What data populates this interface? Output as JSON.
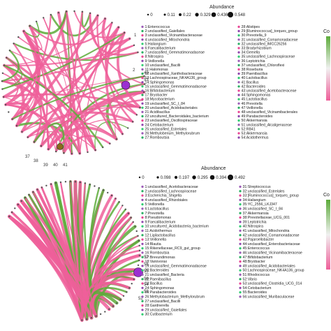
{
  "chart_data": [
    {
      "type": "chord",
      "legend_title": "Abundance",
      "size_legend": [
        "0",
        "0.11",
        "0.22",
        "0.329",
        "0.436",
        "0.548"
      ],
      "color_legend_title": "Co",
      "edge_colors": {
        "positive": "#ef5f9a",
        "negative": "#5dab3a"
      },
      "highlight_nodes": [
        {
          "id": "2",
          "color": "#9b2fd1"
        },
        {
          "id": "40",
          "color": "#8a6a1a"
        }
      ],
      "node_labels": [
        "1",
        "2",
        "49",
        "53",
        "37",
        "38",
        "39",
        "40",
        "41"
      ],
      "taxa": [
        "1:Enterococcus",
        "2:unclassified_Gaiellales",
        "3:unclassified_Vicinamibacteraceae",
        "4:unclassified_Mitochondria",
        "5:Haliangium",
        "6:Faecalibacterium",
        "7:unclassified_Gemmatimonadaceae",
        "8:Nitrospira",
        "9:Veillonella",
        "10:unclassified_Bacilli",
        "11:Halomonas",
        "12:unclassified_Xanthobacteraceae",
        "13:Lachnospiraceae_NK4A136_group",
        "14:Sphingomonas",
        "15:unclassified_Gemmatimonadaceae",
        "16:Bifidobacterium",
        "17:Bryobacter",
        "18:Mycobacterium",
        "19:unclassified_SC_I_84",
        "20:unclassified_Acidobacteriales",
        "21:Acidibacillus",
        "22:uncultured_Bacteroidales_bacterium",
        "23:unclassified_Oscillospiraceae",
        "24:Cetobacterium",
        "25:unclassified_Estrelales",
        "26:Methyloberium_Methylorubrum",
        "27:Romboutsia",
        "28:Alistipes",
        "29:[Ruminococcus]_torques_group",
        "30:Prevotella_9",
        "31:unclassified_Comamonadaceae",
        "32:unclassified_IMCC26256",
        "33:Bradyrhizobium",
        "34:Gemella",
        "35:unclassified_Lachnospiraceae",
        "36:Leptotrichia",
        "37:unclassified_Chloroflexi",
        "38:Roseburia",
        "39:Paenibacillus",
        "40:Lactobacillus",
        "41:Bacillus",
        "42:Bacteroides",
        "43:unclassified_Acetobacteraceae",
        "44:Sphingomonas",
        "45:Lactobacillus",
        "46:Prevotella",
        "47:Veillonella",
        "48:unclassified_Vicinamibacterales",
        "49:Parabacteroides",
        "50:Akkermansia",
        "51:unclassified_Alcaligenaceae",
        "52:RB41",
        "53:Akkermansia",
        "54:Acidothermus"
      ]
    },
    {
      "type": "chord",
      "legend_title": "Abundance",
      "size_legend": [
        "0",
        "0.098",
        "0.197",
        "0.295",
        "0.394",
        "0.492"
      ],
      "color_legend_title": "Co",
      "edge_colors": {
        "positive": "#ef5f9a",
        "negative": "#5dab3a"
      },
      "highlight_nodes": [
        {
          "id": "58",
          "color": "#9b2fd1"
        }
      ],
      "node_labels": [
        "57",
        "56",
        "55",
        "58",
        "54",
        "53",
        "52"
      ],
      "taxa": [
        "1:unclassified_Acetobacteraceae",
        "2:unclassified_Lachnospiraceae",
        "3:Escherichia_Shigella",
        "4:unclassified_Rhizobiales",
        "5:Veillonella",
        "6:Lactobacillus",
        "7:Prevotella",
        "8:Pseudomonas",
        "9:Faecalibacterium",
        "10:uncultured_Acidobacteria_bacterium",
        "11:Acidothermus",
        "12:Ligilactobacillus",
        "13:Veillonella",
        "14:Blautia",
        "15:Rikenellaceae_RC9_gut_group",
        "16:Romboutsia",
        "17:Brevundimonas",
        "18:Variovorax",
        "19:unclassified_Gemmatimonadaceae",
        "20:Bacteroides",
        "21:unclassified_Bacteria",
        "22:Paenibacillus",
        "23:Bacillus",
        "24:Sphingomonas",
        "25:Parabacteroides",
        "26:Methylobacterium_Methylorubrum",
        "27:unclassified_Bacilli",
        "28:Gardnerella",
        "29:unclassified_Gaiellales",
        "30:Cutibacterium",
        "31:Streptococcus",
        "32:unclassified_Estrelales",
        "33:[Ruminococcus]_torques_group",
        "34:Haliangium",
        "35:YC_2556_LKJ347",
        "36:unclassified_SC_I_84",
        "37:Akkermansia",
        "38:Prevotellaceae_UCG_001",
        "39:Leptotrichia",
        "40:Nitrospira",
        "41:unclassified_Mitochondria",
        "42:unclassified_Comamonadaceae",
        "43:Pajaroellobacter",
        "44:unclassified_Enterobacteriaceae",
        "45:Enterococcus",
        "46:unclassified_Vicinamibacteraceae",
        "47:Bifidobacterium",
        "48:Bryobacter",
        "49:unclassified_Acidobacteriales",
        "50:Lachnospiraceae_NK4A136_group",
        "51:Rhodococcus",
        "52:Vibrio",
        "53:unclassified_Clostridia_UCG_014",
        "54:Cetobacterium",
        "55:Bacteroides",
        "56:unclassified_Muribaculaceae"
      ]
    }
  ]
}
